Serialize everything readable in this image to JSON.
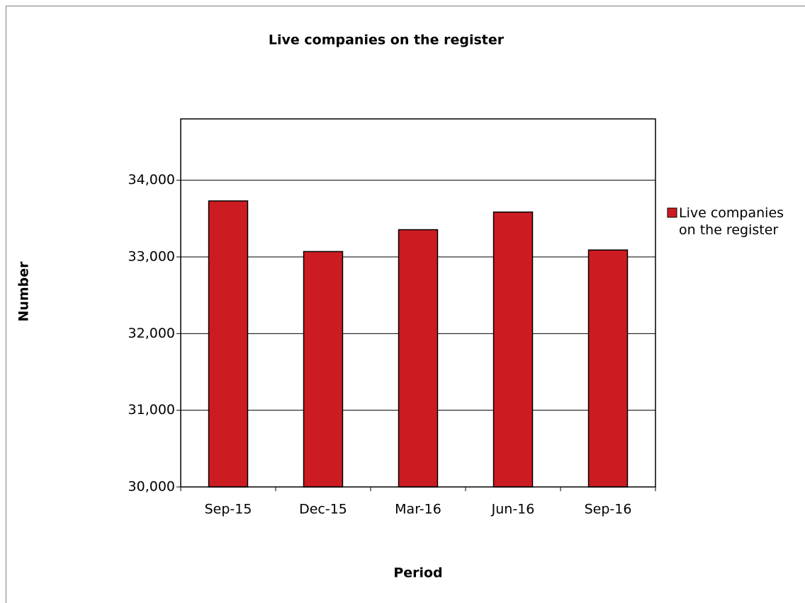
{
  "chart_data": {
    "type": "bar",
    "title": "Live companies on the register",
    "x_label": "Period",
    "y_label": "Number",
    "categories": [
      "Sep-15",
      "Dec-15",
      "Mar-16",
      "Jun-16",
      "Sep-16"
    ],
    "series": [
      {
        "name": "Live companies on the register",
        "color": "#cc1c22",
        "values": [
          33730,
          33070,
          33355,
          33585,
          33090
        ]
      }
    ],
    "ylim": [
      30000,
      34800
    ],
    "yticks": [
      {
        "value": 30000,
        "label": "30,000"
      },
      {
        "value": 31000,
        "label": "31,000"
      },
      {
        "value": 32000,
        "label": "32,000"
      },
      {
        "value": 33000,
        "label": "33,000"
      },
      {
        "value": 34000,
        "label": "34,000"
      }
    ],
    "grid": true,
    "legend": "right"
  }
}
